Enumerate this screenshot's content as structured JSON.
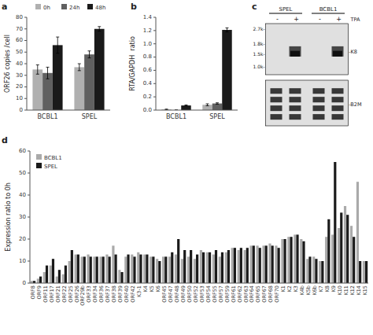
{
  "chart_data": [
    {
      "type": "bar",
      "title": "a",
      "ylabel": "ORF26 copies /cell",
      "categories": [
        "BCBL1",
        "SPEL"
      ],
      "series": [
        {
          "name": "0h",
          "color": "#b0b0b0",
          "values": [
            35,
            37
          ],
          "errors": [
            4,
            3
          ]
        },
        {
          "name": "24h",
          "color": "#606060",
          "values": [
            32,
            48
          ],
          "errors": [
            5,
            3
          ]
        },
        {
          "name": "48h",
          "color": "#1a1a1a",
          "values": [
            56,
            70
          ],
          "errors": [
            7,
            2
          ]
        }
      ],
      "ylim": [
        0,
        80
      ],
      "yticks": [
        0,
        10,
        20,
        30,
        40,
        50,
        60,
        70,
        80
      ],
      "legend": "upper right",
      "grid": false
    },
    {
      "type": "bar",
      "title": "b",
      "ylabel": "RTA/GAPDH  ratio",
      "categories": [
        "BCBL1",
        "SPEL"
      ],
      "series": [
        {
          "name": "0h",
          "color": "#b0b0b0",
          "values": [
            0.01,
            0.08
          ],
          "errors": [
            0.005,
            0.015
          ]
        },
        {
          "name": "24h",
          "color": "#606060",
          "values": [
            0.0,
            0.1
          ],
          "errors": [
            0.003,
            0.01
          ]
        },
        {
          "name": "48h",
          "color": "#1a1a1a",
          "values": [
            0.07,
            1.21
          ],
          "errors": [
            0.008,
            0.03
          ]
        }
      ],
      "ylim": [
        0,
        1.4
      ],
      "yticks": [
        {
          "value": 0,
          "label": "0.0"
        },
        0.2,
        0.4,
        0.6,
        0.8,
        {
          "value": 1,
          "label": "1.0"
        },
        1.2,
        1.4
      ],
      "grid": false
    },
    {
      "type": "gel",
      "title": "c",
      "annotations": [
        "SPEL",
        "BCBL1",
        "-",
        "+",
        "-",
        "+",
        "TPA",
        "2.7k-",
        "1.8k-",
        "1.5k-",
        "1.0k-",
        "-K8",
        "-B2M"
      ]
    },
    {
      "type": "bar",
      "title": "d",
      "ylabel": "Expression ratio to 0h",
      "categories": [
        "ORF8",
        "ORF9",
        "ORF11",
        "ORF17",
        "ORF21",
        "ORF22",
        "ORF25",
        "ORF26",
        "ORF29b",
        "ORF33",
        "ORF34",
        "ORF36",
        "ORF37",
        "ORF38",
        "ORF39",
        "ORF40",
        "ORF42",
        "K3-1",
        "K4",
        "K5",
        "K6",
        "ORF45",
        "ORF47",
        "ORF48",
        "ORF49",
        "ORF50",
        "ORF52",
        "ORF53",
        "ORF54",
        "ORF55",
        "ORF57",
        "ORF59",
        "ORF61",
        "ORF62",
        "ORF63",
        "ORF64",
        "ORF65",
        "ORF67",
        "ORF68",
        "ORF70",
        "K1",
        "K2",
        "K3",
        "K4b",
        "K5b",
        "K6b",
        "K7",
        "K8",
        "K9",
        "K10",
        "K11",
        "K12",
        "K14",
        "K15"
      ],
      "series": [
        {
          "name": "BCBL1",
          "color": "#aaaaaa",
          "values": [
            1,
            2,
            5,
            8,
            3,
            4,
            10,
            13,
            12,
            13,
            12,
            12,
            13,
            17,
            6,
            12,
            13,
            14,
            13,
            12,
            11,
            12,
            12,
            13,
            11,
            12,
            11,
            15,
            14,
            13,
            12,
            14,
            16,
            15,
            15,
            17,
            17,
            17,
            18,
            17,
            20,
            21,
            22,
            20,
            11,
            12,
            10,
            21,
            22,
            25,
            35,
            26,
            46,
            10
          ]
        },
        {
          "name": "SPEL",
          "color": "#1a1a1a",
          "values": [
            1,
            3,
            8,
            11,
            6,
            8,
            15,
            13,
            12,
            12,
            12,
            12,
            12,
            13,
            5,
            13,
            12,
            13,
            13,
            12,
            10,
            12,
            14,
            20,
            15,
            15,
            13,
            14,
            14,
            15,
            14,
            15,
            16,
            16,
            16,
            17,
            16,
            17,
            17,
            16,
            20,
            21,
            22,
            19,
            12,
            11,
            10,
            29,
            55,
            32,
            31,
            21,
            10,
            10
          ]
        }
      ],
      "ylim": [
        0,
        60
      ],
      "yticks": [
        0,
        10,
        20,
        30,
        40,
        50,
        60
      ],
      "legend": "upper left",
      "grid": false
    }
  ]
}
